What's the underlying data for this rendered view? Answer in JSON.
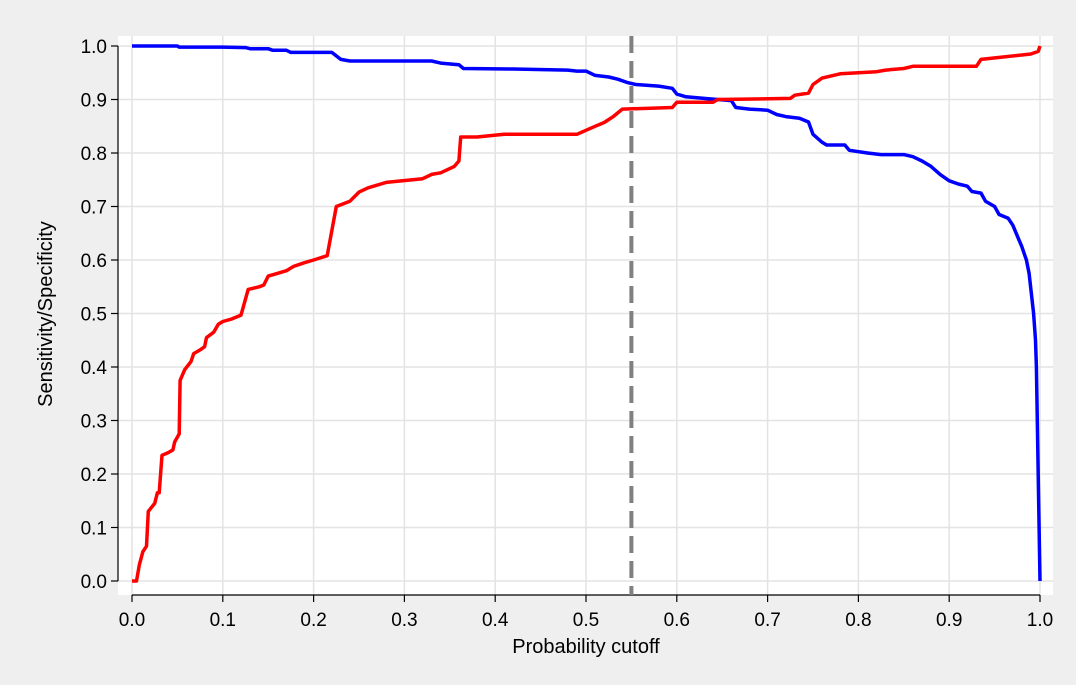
{
  "chart_data": {
    "type": "line",
    "xlabel": "Probability cutoff",
    "ylabel": "Sensitivity/Specificity",
    "xlim": [
      0,
      1
    ],
    "ylim": [
      0,
      1
    ],
    "xticks": [
      "0.0",
      "0.1",
      "0.2",
      "0.3",
      "0.4",
      "0.5",
      "0.6",
      "0.7",
      "0.8",
      "0.9",
      "1.0"
    ],
    "yticks": [
      "0.0",
      "0.1",
      "0.2",
      "0.3",
      "0.4",
      "0.5",
      "0.6",
      "0.7",
      "0.8",
      "0.9",
      "1.0"
    ],
    "grid": true,
    "legend": "none",
    "cutoff_line": 0.55,
    "colors": {
      "outer_background": "#efefef",
      "plot_background": "#ffffff",
      "grid": "#e3e3e3",
      "series_blue": "#0000ff",
      "series_red": "#ff0000",
      "cutoff_line": "#808080"
    },
    "series": [
      {
        "color": "#0000ff",
        "points": [
          [
            0.0,
            1.0
          ],
          [
            0.05,
            1.0
          ],
          [
            0.052,
            0.998
          ],
          [
            0.1,
            0.998
          ],
          [
            0.125,
            0.997
          ],
          [
            0.13,
            0.995
          ],
          [
            0.15,
            0.995
          ],
          [
            0.155,
            0.992
          ],
          [
            0.17,
            0.992
          ],
          [
            0.175,
            0.988
          ],
          [
            0.22,
            0.988
          ],
          [
            0.23,
            0.975
          ],
          [
            0.24,
            0.972
          ],
          [
            0.33,
            0.972
          ],
          [
            0.34,
            0.968
          ],
          [
            0.36,
            0.965
          ],
          [
            0.365,
            0.958
          ],
          [
            0.42,
            0.957
          ],
          [
            0.48,
            0.955
          ],
          [
            0.49,
            0.953
          ],
          [
            0.5,
            0.953
          ],
          [
            0.51,
            0.945
          ],
          [
            0.525,
            0.942
          ],
          [
            0.535,
            0.938
          ],
          [
            0.545,
            0.932
          ],
          [
            0.555,
            0.928
          ],
          [
            0.58,
            0.925
          ],
          [
            0.595,
            0.921
          ],
          [
            0.6,
            0.91
          ],
          [
            0.61,
            0.905
          ],
          [
            0.63,
            0.902
          ],
          [
            0.66,
            0.898
          ],
          [
            0.665,
            0.885
          ],
          [
            0.68,
            0.882
          ],
          [
            0.7,
            0.88
          ],
          [
            0.71,
            0.872
          ],
          [
            0.72,
            0.868
          ],
          [
            0.735,
            0.865
          ],
          [
            0.745,
            0.858
          ],
          [
            0.75,
            0.835
          ],
          [
            0.76,
            0.82
          ],
          [
            0.765,
            0.815
          ],
          [
            0.785,
            0.815
          ],
          [
            0.79,
            0.805
          ],
          [
            0.81,
            0.8
          ],
          [
            0.825,
            0.797
          ],
          [
            0.85,
            0.797
          ],
          [
            0.86,
            0.793
          ],
          [
            0.87,
            0.785
          ],
          [
            0.88,
            0.775
          ],
          [
            0.89,
            0.76
          ],
          [
            0.9,
            0.748
          ],
          [
            0.91,
            0.742
          ],
          [
            0.92,
            0.738
          ],
          [
            0.925,
            0.728
          ],
          [
            0.935,
            0.725
          ],
          [
            0.94,
            0.71
          ],
          [
            0.95,
            0.7
          ],
          [
            0.955,
            0.685
          ],
          [
            0.965,
            0.678
          ],
          [
            0.97,
            0.665
          ],
          [
            0.975,
            0.645
          ],
          [
            0.98,
            0.625
          ],
          [
            0.985,
            0.6
          ],
          [
            0.988,
            0.575
          ],
          [
            0.99,
            0.545
          ],
          [
            0.993,
            0.5
          ],
          [
            0.995,
            0.45
          ],
          [
            0.996,
            0.4
          ],
          [
            0.997,
            0.3
          ],
          [
            0.998,
            0.2
          ],
          [
            0.999,
            0.1
          ],
          [
            1.0,
            0.0
          ]
        ]
      },
      {
        "color": "#ff0000",
        "points": [
          [
            0.0,
            0.0
          ],
          [
            0.005,
            0.0
          ],
          [
            0.008,
            0.03
          ],
          [
            0.012,
            0.055
          ],
          [
            0.016,
            0.065
          ],
          [
            0.018,
            0.13
          ],
          [
            0.025,
            0.145
          ],
          [
            0.028,
            0.165
          ],
          [
            0.03,
            0.165
          ],
          [
            0.033,
            0.235
          ],
          [
            0.04,
            0.24
          ],
          [
            0.045,
            0.245
          ],
          [
            0.047,
            0.26
          ],
          [
            0.052,
            0.275
          ],
          [
            0.053,
            0.375
          ],
          [
            0.058,
            0.395
          ],
          [
            0.065,
            0.41
          ],
          [
            0.068,
            0.425
          ],
          [
            0.075,
            0.432
          ],
          [
            0.08,
            0.438
          ],
          [
            0.082,
            0.455
          ],
          [
            0.09,
            0.465
          ],
          [
            0.095,
            0.48
          ],
          [
            0.1,
            0.485
          ],
          [
            0.11,
            0.49
          ],
          [
            0.12,
            0.497
          ],
          [
            0.128,
            0.545
          ],
          [
            0.14,
            0.55
          ],
          [
            0.145,
            0.553
          ],
          [
            0.15,
            0.57
          ],
          [
            0.16,
            0.575
          ],
          [
            0.17,
            0.58
          ],
          [
            0.178,
            0.588
          ],
          [
            0.19,
            0.595
          ],
          [
            0.2,
            0.6
          ],
          [
            0.215,
            0.608
          ],
          [
            0.225,
            0.7
          ],
          [
            0.24,
            0.71
          ],
          [
            0.25,
            0.727
          ],
          [
            0.26,
            0.735
          ],
          [
            0.28,
            0.745
          ],
          [
            0.32,
            0.752
          ],
          [
            0.33,
            0.76
          ],
          [
            0.34,
            0.763
          ],
          [
            0.355,
            0.775
          ],
          [
            0.36,
            0.785
          ],
          [
            0.362,
            0.83
          ],
          [
            0.38,
            0.83
          ],
          [
            0.41,
            0.835
          ],
          [
            0.49,
            0.835
          ],
          [
            0.51,
            0.85
          ],
          [
            0.52,
            0.857
          ],
          [
            0.53,
            0.868
          ],
          [
            0.54,
            0.882
          ],
          [
            0.595,
            0.885
          ],
          [
            0.6,
            0.895
          ],
          [
            0.64,
            0.895
          ],
          [
            0.645,
            0.9
          ],
          [
            0.725,
            0.902
          ],
          [
            0.73,
            0.908
          ],
          [
            0.745,
            0.912
          ],
          [
            0.75,
            0.928
          ],
          [
            0.76,
            0.94
          ],
          [
            0.78,
            0.948
          ],
          [
            0.82,
            0.952
          ],
          [
            0.83,
            0.955
          ],
          [
            0.85,
            0.958
          ],
          [
            0.86,
            0.962
          ],
          [
            0.93,
            0.962
          ],
          [
            0.935,
            0.975
          ],
          [
            0.99,
            0.985
          ],
          [
            0.998,
            0.99
          ],
          [
            1.0,
            1.0
          ]
        ]
      }
    ]
  }
}
